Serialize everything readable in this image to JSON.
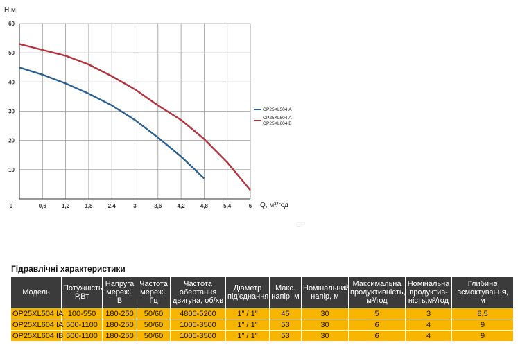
{
  "chart_data": {
    "type": "line",
    "ylabel": "H,м",
    "xlabel": "Q, м³/год",
    "xlim": [
      0,
      6
    ],
    "ylim": [
      0,
      60
    ],
    "x_ticks": [
      "0,6",
      "1,2",
      "1,8",
      "2,4",
      "3",
      "3,6",
      "4,2",
      "4,8",
      "5,4",
      "6"
    ],
    "y_ticks": [
      "60",
      "50",
      "40",
      "30",
      "20",
      "10"
    ],
    "origin_label": "0",
    "legend_position": "right",
    "series": [
      {
        "name": "OP25XL504IA",
        "color": "#2b5f8e",
        "x": [
          0,
          0.6,
          1.2,
          1.8,
          2.4,
          3.0,
          3.6,
          4.2,
          4.8
        ],
        "y": [
          45,
          42.5,
          39.5,
          36,
          32,
          27,
          21,
          14.5,
          7
        ]
      },
      {
        "name": "OP25XL604IA\nOP25XL604IB",
        "color": "#b5313b",
        "x": [
          0,
          0.6,
          1.2,
          1.8,
          2.4,
          3.0,
          3.6,
          4.2,
          4.8,
          5.4,
          6.0
        ],
        "y": [
          53,
          51,
          49,
          46,
          42,
          37.5,
          32,
          27,
          20.5,
          12.5,
          3
        ]
      }
    ],
    "faint_text": "OP"
  },
  "table": {
    "title": "Гідравлічні характеристики",
    "headers": [
      "Модель",
      "Потужність\nР,Вт",
      "Напруга\nмережі,\nВ",
      "Частота\nмережі,\nГц",
      "Частота\nобертання\nдвигуна, об/хв",
      "Діаметр\nпід'єднання",
      "Макс.\nнапір, м",
      "Номінальний\nнапір, м",
      "Максимальна\nпродуктивність,\nм³/год",
      "Номінальна\nпродуктив-\nність,м³/год",
      "Глибина\nвсмоктування,\nм"
    ],
    "rows": [
      [
        "OP25XL504 IA",
        "100-550",
        "180-250",
        "50/60",
        "4800-5200",
        "1\" / 1\"",
        "45",
        "30",
        "5",
        "3",
        "8,5"
      ],
      [
        "OP25XL604 IA",
        "500-1100",
        "180-250",
        "50/60",
        "1000-3500",
        "1\" / 1\"",
        "53",
        "30",
        "6",
        "4",
        "9"
      ],
      [
        "OP25XL604 IB",
        "500-1100",
        "180-250",
        "50/60",
        "1000-3500",
        "1\" / 1\"",
        "53",
        "30",
        "6",
        "4",
        "9"
      ]
    ]
  }
}
